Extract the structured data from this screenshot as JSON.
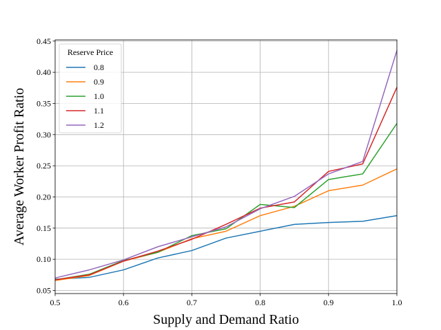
{
  "chart_data": {
    "type": "line",
    "xlabel": "Supply and Demand Ratio",
    "ylabel": "Average Worker Profit Ratio",
    "xlim": [
      0.5,
      1.0
    ],
    "ylim": [
      0.045,
      0.452
    ],
    "xticks": [
      0.5,
      0.6,
      0.7,
      0.8,
      0.9,
      1.0
    ],
    "xtick_labels": [
      "0.5",
      "0.6",
      "0.7",
      "0.8",
      "0.9",
      "1.0"
    ],
    "yticks": [
      0.05,
      0.1,
      0.15,
      0.2,
      0.25,
      0.3,
      0.35,
      0.4,
      0.45
    ],
    "ytick_labels": [
      "0.05",
      "0.10",
      "0.15",
      "0.20",
      "0.25",
      "0.30",
      "0.35",
      "0.40",
      "0.45"
    ],
    "grid": true,
    "legend": {
      "title": "Reserve Price",
      "placement": "top-left"
    },
    "x": [
      0.5,
      0.55,
      0.6,
      0.65,
      0.7,
      0.75,
      0.8,
      0.85,
      0.9,
      0.95,
      1.0
    ],
    "series": [
      {
        "name": "0.8",
        "color": "#1f77b4",
        "values": [
          0.068,
          0.071,
          0.083,
          0.102,
          0.114,
          0.134,
          0.145,
          0.156,
          0.159,
          0.161,
          0.17
        ]
      },
      {
        "name": "0.9",
        "color": "#ff7f0e",
        "values": [
          0.066,
          0.074,
          0.097,
          0.111,
          0.133,
          0.145,
          0.17,
          0.185,
          0.21,
          0.219,
          0.245
        ]
      },
      {
        "name": "1.0",
        "color": "#2ca02c",
        "values": [
          0.067,
          0.076,
          0.098,
          0.111,
          0.138,
          0.149,
          0.188,
          0.183,
          0.228,
          0.237,
          0.318
        ]
      },
      {
        "name": "1.1",
        "color": "#d62728",
        "values": [
          0.067,
          0.075,
          0.097,
          0.113,
          0.132,
          0.156,
          0.182,
          0.192,
          0.241,
          0.253,
          0.376
        ]
      },
      {
        "name": "1.2",
        "color": "#9467bd",
        "values": [
          0.07,
          0.083,
          0.099,
          0.12,
          0.136,
          0.152,
          0.181,
          0.201,
          0.237,
          0.257,
          0.435
        ]
      }
    ]
  }
}
